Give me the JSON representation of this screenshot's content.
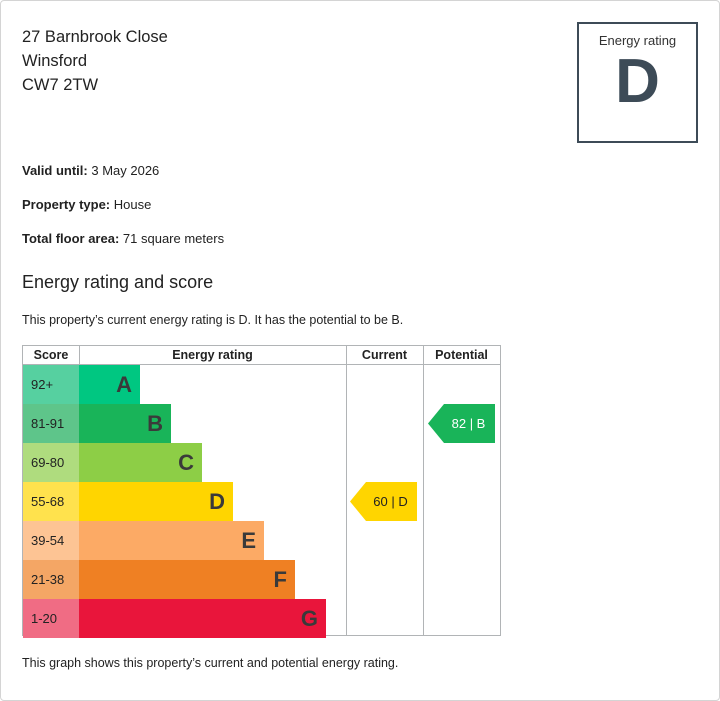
{
  "address": {
    "line1": "27 Barnbrook Close",
    "line2": "Winsford",
    "line3": "CW7 2TW"
  },
  "rating_badge": {
    "label": "Energy rating",
    "letter": "D"
  },
  "details": {
    "valid_until_label": "Valid until:",
    "valid_until_value": "3 May 2026",
    "property_type_label": "Property type:",
    "property_type_value": "House",
    "floor_area_label": "Total floor area:",
    "floor_area_value": "71 square meters"
  },
  "section": {
    "title": "Energy rating and score",
    "summary": "This property’s current energy rating is D. It has the potential to be B."
  },
  "table": {
    "headers": {
      "score": "Score",
      "rating": "Energy rating",
      "current": "Current",
      "potential": "Potential"
    },
    "bands": [
      {
        "range": "92+",
        "letter": "A",
        "bar_color": "#00c781",
        "score_color": "#56d0a0"
      },
      {
        "range": "81-91",
        "letter": "B",
        "bar_color": "#19b459",
        "score_color": "#5ec58a"
      },
      {
        "range": "69-80",
        "letter": "C",
        "bar_color": "#8dce46",
        "score_color": "#afdc7e"
      },
      {
        "range": "55-68",
        "letter": "D",
        "bar_color": "#ffd500",
        "score_color": "#ffe24d"
      },
      {
        "range": "39-54",
        "letter": "E",
        "bar_color": "#fcaa65",
        "score_color": "#fdc494"
      },
      {
        "range": "21-38",
        "letter": "F",
        "bar_color": "#ef8023",
        "score_color": "#f4a665"
      },
      {
        "range": "1-20",
        "letter": "G",
        "bar_color": "#e9153b",
        "score_color": "#f06c84"
      }
    ],
    "current": {
      "text": "60 | D",
      "band_index": 3,
      "color": "#ffd500",
      "text_color": "#222222"
    },
    "potential": {
      "text": "82 | B",
      "band_index": 1,
      "color": "#19b459",
      "text_color": "#ffffff"
    }
  },
  "footer_note": "This graph shows this property’s current and potential energy rating."
}
